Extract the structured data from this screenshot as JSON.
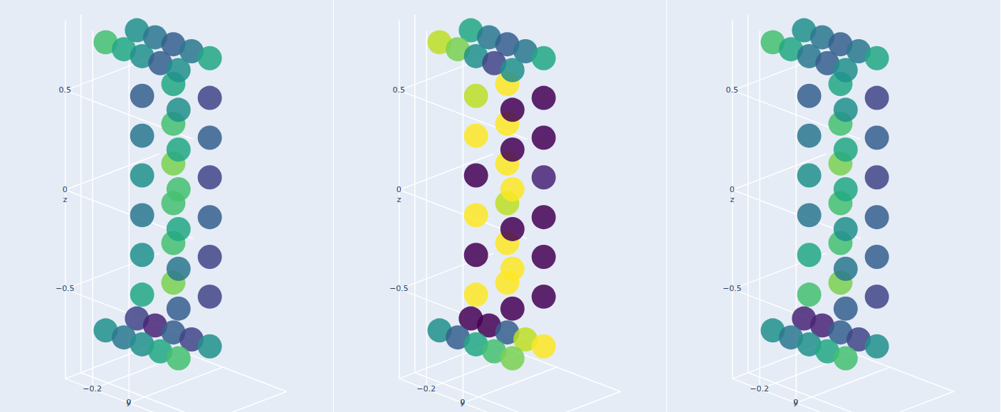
{
  "chart_data": [
    {
      "type": "scatter3d",
      "color": "viridis",
      "color_range": [
        0,
        1
      ],
      "grid": true,
      "zlabel": "z",
      "ylabel": "y",
      "xlim": [
        -0.3,
        0.3
      ],
      "ylim": [
        -0.35,
        0.35
      ],
      "zlim": [
        -0.95,
        0.85
      ],
      "xticks": [
        {
          "value": -0.2,
          "label": "−0.2"
        }
      ],
      "yticks": [
        {
          "value": -0.2,
          "label": "−0.2"
        },
        0
      ],
      "zticks": [
        {
          "value": -0.5,
          "label": "−0.5"
        },
        0,
        0.5
      ],
      "points": [
        [
          -0.1,
          -0.1,
          -0.5,
          0.6
        ],
        [
          -0.1,
          0.1,
          -0.5,
          0.3
        ],
        [
          0.1,
          -0.1,
          -0.5,
          0.8
        ],
        [
          0.1,
          0.1,
          -0.5,
          0.2
        ],
        [
          -0.1,
          -0.1,
          -0.3,
          0.5
        ],
        [
          -0.1,
          0.1,
          -0.3,
          0.4
        ],
        [
          0.1,
          -0.1,
          -0.3,
          0.7
        ],
        [
          0.1,
          0.1,
          -0.3,
          0.2
        ],
        [
          -0.1,
          -0.1,
          -0.1,
          0.4
        ],
        [
          -0.1,
          0.1,
          -0.1,
          0.6
        ],
        [
          0.1,
          -0.1,
          -0.1,
          0.7
        ],
        [
          0.1,
          0.1,
          -0.1,
          0.3
        ],
        [
          -0.1,
          -0.1,
          0.1,
          0.5
        ],
        [
          -0.1,
          0.1,
          0.1,
          0.7
        ],
        [
          0.1,
          -0.1,
          0.1,
          0.8
        ],
        [
          0.1,
          0.1,
          0.1,
          0.2
        ],
        [
          -0.1,
          -0.1,
          0.3,
          0.4
        ],
        [
          -0.1,
          0.1,
          0.3,
          0.6
        ],
        [
          0.1,
          -0.1,
          0.3,
          0.7
        ],
        [
          0.1,
          0.1,
          0.3,
          0.3
        ],
        [
          -0.1,
          -0.1,
          0.5,
          0.3
        ],
        [
          -0.1,
          0.1,
          0.5,
          0.5
        ],
        [
          0.1,
          -0.1,
          0.5,
          0.6
        ],
        [
          0.1,
          0.1,
          0.5,
          0.2
        ],
        [
          -0.1,
          -0.3,
          0.7,
          0.7
        ],
        [
          0.1,
          -0.3,
          0.7,
          0.5
        ],
        [
          -0.1,
          -0.2,
          0.7,
          0.6
        ],
        [
          0.1,
          -0.2,
          0.7,
          0.4
        ],
        [
          -0.1,
          -0.1,
          0.7,
          0.5
        ],
        [
          0.1,
          -0.1,
          0.7,
          0.3
        ],
        [
          -0.1,
          0,
          0.7,
          0.3
        ],
        [
          0.1,
          0,
          0.7,
          0.4
        ],
        [
          -0.1,
          0.1,
          0.7,
          0.5
        ],
        [
          0.1,
          0.1,
          0.7,
          0.6
        ],
        [
          -0.1,
          -0.3,
          -0.75,
          0.5
        ],
        [
          0.1,
          -0.3,
          -0.75,
          0.2
        ],
        [
          -0.1,
          -0.2,
          -0.75,
          0.4
        ],
        [
          0.1,
          -0.2,
          -0.75,
          0.1
        ],
        [
          -0.1,
          -0.1,
          -0.75,
          0.5
        ],
        [
          0.1,
          -0.1,
          -0.75,
          0.3
        ],
        [
          -0.1,
          0,
          -0.75,
          0.6
        ],
        [
          0.1,
          0,
          -0.75,
          0.2
        ],
        [
          -0.1,
          0.1,
          -0.75,
          0.7
        ],
        [
          0.1,
          0.1,
          -0.75,
          0.5
        ]
      ]
    },
    {
      "type": "scatter3d",
      "color": "viridis",
      "color_range": [
        0,
        1
      ],
      "grid": true,
      "zlabel": "z",
      "ylabel": "y",
      "xlim": [
        -0.3,
        0.3
      ],
      "ylim": [
        -0.35,
        0.35
      ],
      "zlim": [
        -0.95,
        0.85
      ],
      "xticks": [
        {
          "value": -0.2,
          "label": "−0.2"
        }
      ],
      "yticks": [
        {
          "value": -0.2,
          "label": "−0.2"
        },
        0
      ],
      "zticks": [
        {
          "value": -0.5,
          "label": "−0.5"
        },
        0,
        0.5
      ],
      "points": [
        [
          -0.1,
          -0.1,
          -0.5,
          1
        ],
        [
          -0.1,
          0.1,
          -0.5,
          0
        ],
        [
          0.1,
          -0.1,
          -0.5,
          1
        ],
        [
          0.1,
          0.1,
          -0.5,
          0
        ],
        [
          -0.1,
          -0.1,
          -0.3,
          0
        ],
        [
          -0.1,
          0.1,
          -0.3,
          1
        ],
        [
          0.1,
          -0.1,
          -0.3,
          1
        ],
        [
          0.1,
          0.1,
          -0.3,
          0
        ],
        [
          -0.1,
          -0.1,
          -0.1,
          1
        ],
        [
          -0.1,
          0.1,
          -0.1,
          0
        ],
        [
          0.1,
          -0.1,
          -0.1,
          0.9
        ],
        [
          0.1,
          0.1,
          -0.1,
          0
        ],
        [
          -0.1,
          -0.1,
          0.1,
          0
        ],
        [
          -0.1,
          0.1,
          0.1,
          1
        ],
        [
          0.1,
          -0.1,
          0.1,
          1
        ],
        [
          0.1,
          0.1,
          0.1,
          0.1
        ],
        [
          -0.1,
          -0.1,
          0.3,
          1
        ],
        [
          -0.1,
          0.1,
          0.3,
          0
        ],
        [
          0.1,
          -0.1,
          0.3,
          1
        ],
        [
          0.1,
          0.1,
          0.3,
          0
        ],
        [
          -0.1,
          -0.1,
          0.5,
          0.9
        ],
        [
          -0.1,
          0.1,
          0.5,
          0
        ],
        [
          0.1,
          -0.1,
          0.5,
          1
        ],
        [
          0.1,
          0.1,
          0.5,
          0
        ],
        [
          -0.1,
          -0.3,
          0.7,
          0.9
        ],
        [
          0.1,
          -0.3,
          0.7,
          0.6
        ],
        [
          -0.1,
          -0.2,
          0.7,
          0.8
        ],
        [
          0.1,
          -0.2,
          0.7,
          0.4
        ],
        [
          -0.1,
          -0.1,
          0.7,
          0.5
        ],
        [
          0.1,
          -0.1,
          0.7,
          0.3
        ],
        [
          -0.1,
          0,
          0.7,
          0.2
        ],
        [
          0.1,
          0,
          0.7,
          0.4
        ],
        [
          -0.1,
          0.1,
          0.7,
          0.5
        ],
        [
          0.1,
          0.1,
          0.7,
          0.6
        ],
        [
          -0.1,
          -0.3,
          -0.75,
          0.5
        ],
        [
          0.1,
          -0.3,
          -0.75,
          0
        ],
        [
          -0.1,
          -0.2,
          -0.75,
          0.3
        ],
        [
          0.1,
          -0.2,
          -0.75,
          0
        ],
        [
          -0.1,
          -0.1,
          -0.75,
          0.6
        ],
        [
          0.1,
          -0.1,
          -0.75,
          0.3
        ],
        [
          -0.1,
          0,
          -0.75,
          0.7
        ],
        [
          0.1,
          0,
          -0.75,
          0.9
        ],
        [
          -0.1,
          0.1,
          -0.75,
          0.8
        ],
        [
          0.1,
          0.1,
          -0.75,
          1
        ]
      ]
    },
    {
      "type": "scatter3d",
      "color": "viridis",
      "color_range": [
        0,
        1
      ],
      "grid": true,
      "zlabel": "z",
      "ylabel": "y",
      "xlim": [
        -0.3,
        0.3
      ],
      "ylim": [
        -0.35,
        0.35
      ],
      "zlim": [
        -0.95,
        0.85
      ],
      "xticks": [
        {
          "value": -0.2,
          "label": "−0.2"
        }
      ],
      "yticks": [
        {
          "value": -0.2,
          "label": "−0.2"
        },
        0
      ],
      "zticks": [
        {
          "value": -0.5,
          "label": "−0.5"
        },
        0,
        0.5
      ],
      "points": [
        [
          -0.1,
          -0.1,
          -0.5,
          0.7
        ],
        [
          -0.1,
          0.1,
          -0.5,
          0.3
        ],
        [
          0.1,
          -0.1,
          -0.5,
          0.8
        ],
        [
          0.1,
          0.1,
          -0.5,
          0.2
        ],
        [
          -0.1,
          -0.1,
          -0.3,
          0.6
        ],
        [
          -0.1,
          0.1,
          -0.3,
          0.4
        ],
        [
          0.1,
          -0.1,
          -0.3,
          0.7
        ],
        [
          0.1,
          0.1,
          -0.3,
          0.3
        ],
        [
          -0.1,
          -0.1,
          -0.1,
          0.4
        ],
        [
          -0.1,
          0.1,
          -0.1,
          0.5
        ],
        [
          0.1,
          -0.1,
          -0.1,
          0.7
        ],
        [
          0.1,
          0.1,
          -0.1,
          0.3
        ],
        [
          -0.1,
          -0.1,
          0.1,
          0.5
        ],
        [
          -0.1,
          0.1,
          0.1,
          0.6
        ],
        [
          0.1,
          -0.1,
          0.1,
          0.8
        ],
        [
          0.1,
          0.1,
          0.1,
          0.2
        ],
        [
          -0.1,
          -0.1,
          0.3,
          0.4
        ],
        [
          -0.1,
          0.1,
          0.3,
          0.6
        ],
        [
          0.1,
          -0.1,
          0.3,
          0.7
        ],
        [
          0.1,
          0.1,
          0.3,
          0.3
        ],
        [
          -0.1,
          -0.1,
          0.5,
          0.3
        ],
        [
          -0.1,
          0.1,
          0.5,
          0.5
        ],
        [
          0.1,
          -0.1,
          0.5,
          0.6
        ],
        [
          0.1,
          0.1,
          0.5,
          0.2
        ],
        [
          -0.1,
          -0.3,
          0.7,
          0.7
        ],
        [
          0.1,
          -0.3,
          0.7,
          0.5
        ],
        [
          -0.1,
          -0.2,
          0.7,
          0.6
        ],
        [
          0.1,
          -0.2,
          0.7,
          0.4
        ],
        [
          -0.1,
          -0.1,
          0.7,
          0.4
        ],
        [
          0.1,
          -0.1,
          0.7,
          0.3
        ],
        [
          -0.1,
          0,
          0.7,
          0.3
        ],
        [
          0.1,
          0,
          0.7,
          0.4
        ],
        [
          -0.1,
          0.1,
          0.7,
          0.5
        ],
        [
          0.1,
          0.1,
          0.7,
          0.6
        ],
        [
          -0.1,
          -0.3,
          -0.75,
          0.5
        ],
        [
          0.1,
          -0.3,
          -0.75,
          0.1
        ],
        [
          -0.1,
          -0.2,
          -0.75,
          0.4
        ],
        [
          0.1,
          -0.2,
          -0.75,
          0.1
        ],
        [
          -0.1,
          -0.1,
          -0.75,
          0.5
        ],
        [
          0.1,
          -0.1,
          -0.75,
          0.3
        ],
        [
          -0.1,
          0,
          -0.75,
          0.6
        ],
        [
          0.1,
          0,
          -0.75,
          0.2
        ],
        [
          -0.1,
          0.1,
          -0.75,
          0.7
        ],
        [
          0.1,
          0.1,
          -0.75,
          0.5
        ]
      ]
    }
  ]
}
